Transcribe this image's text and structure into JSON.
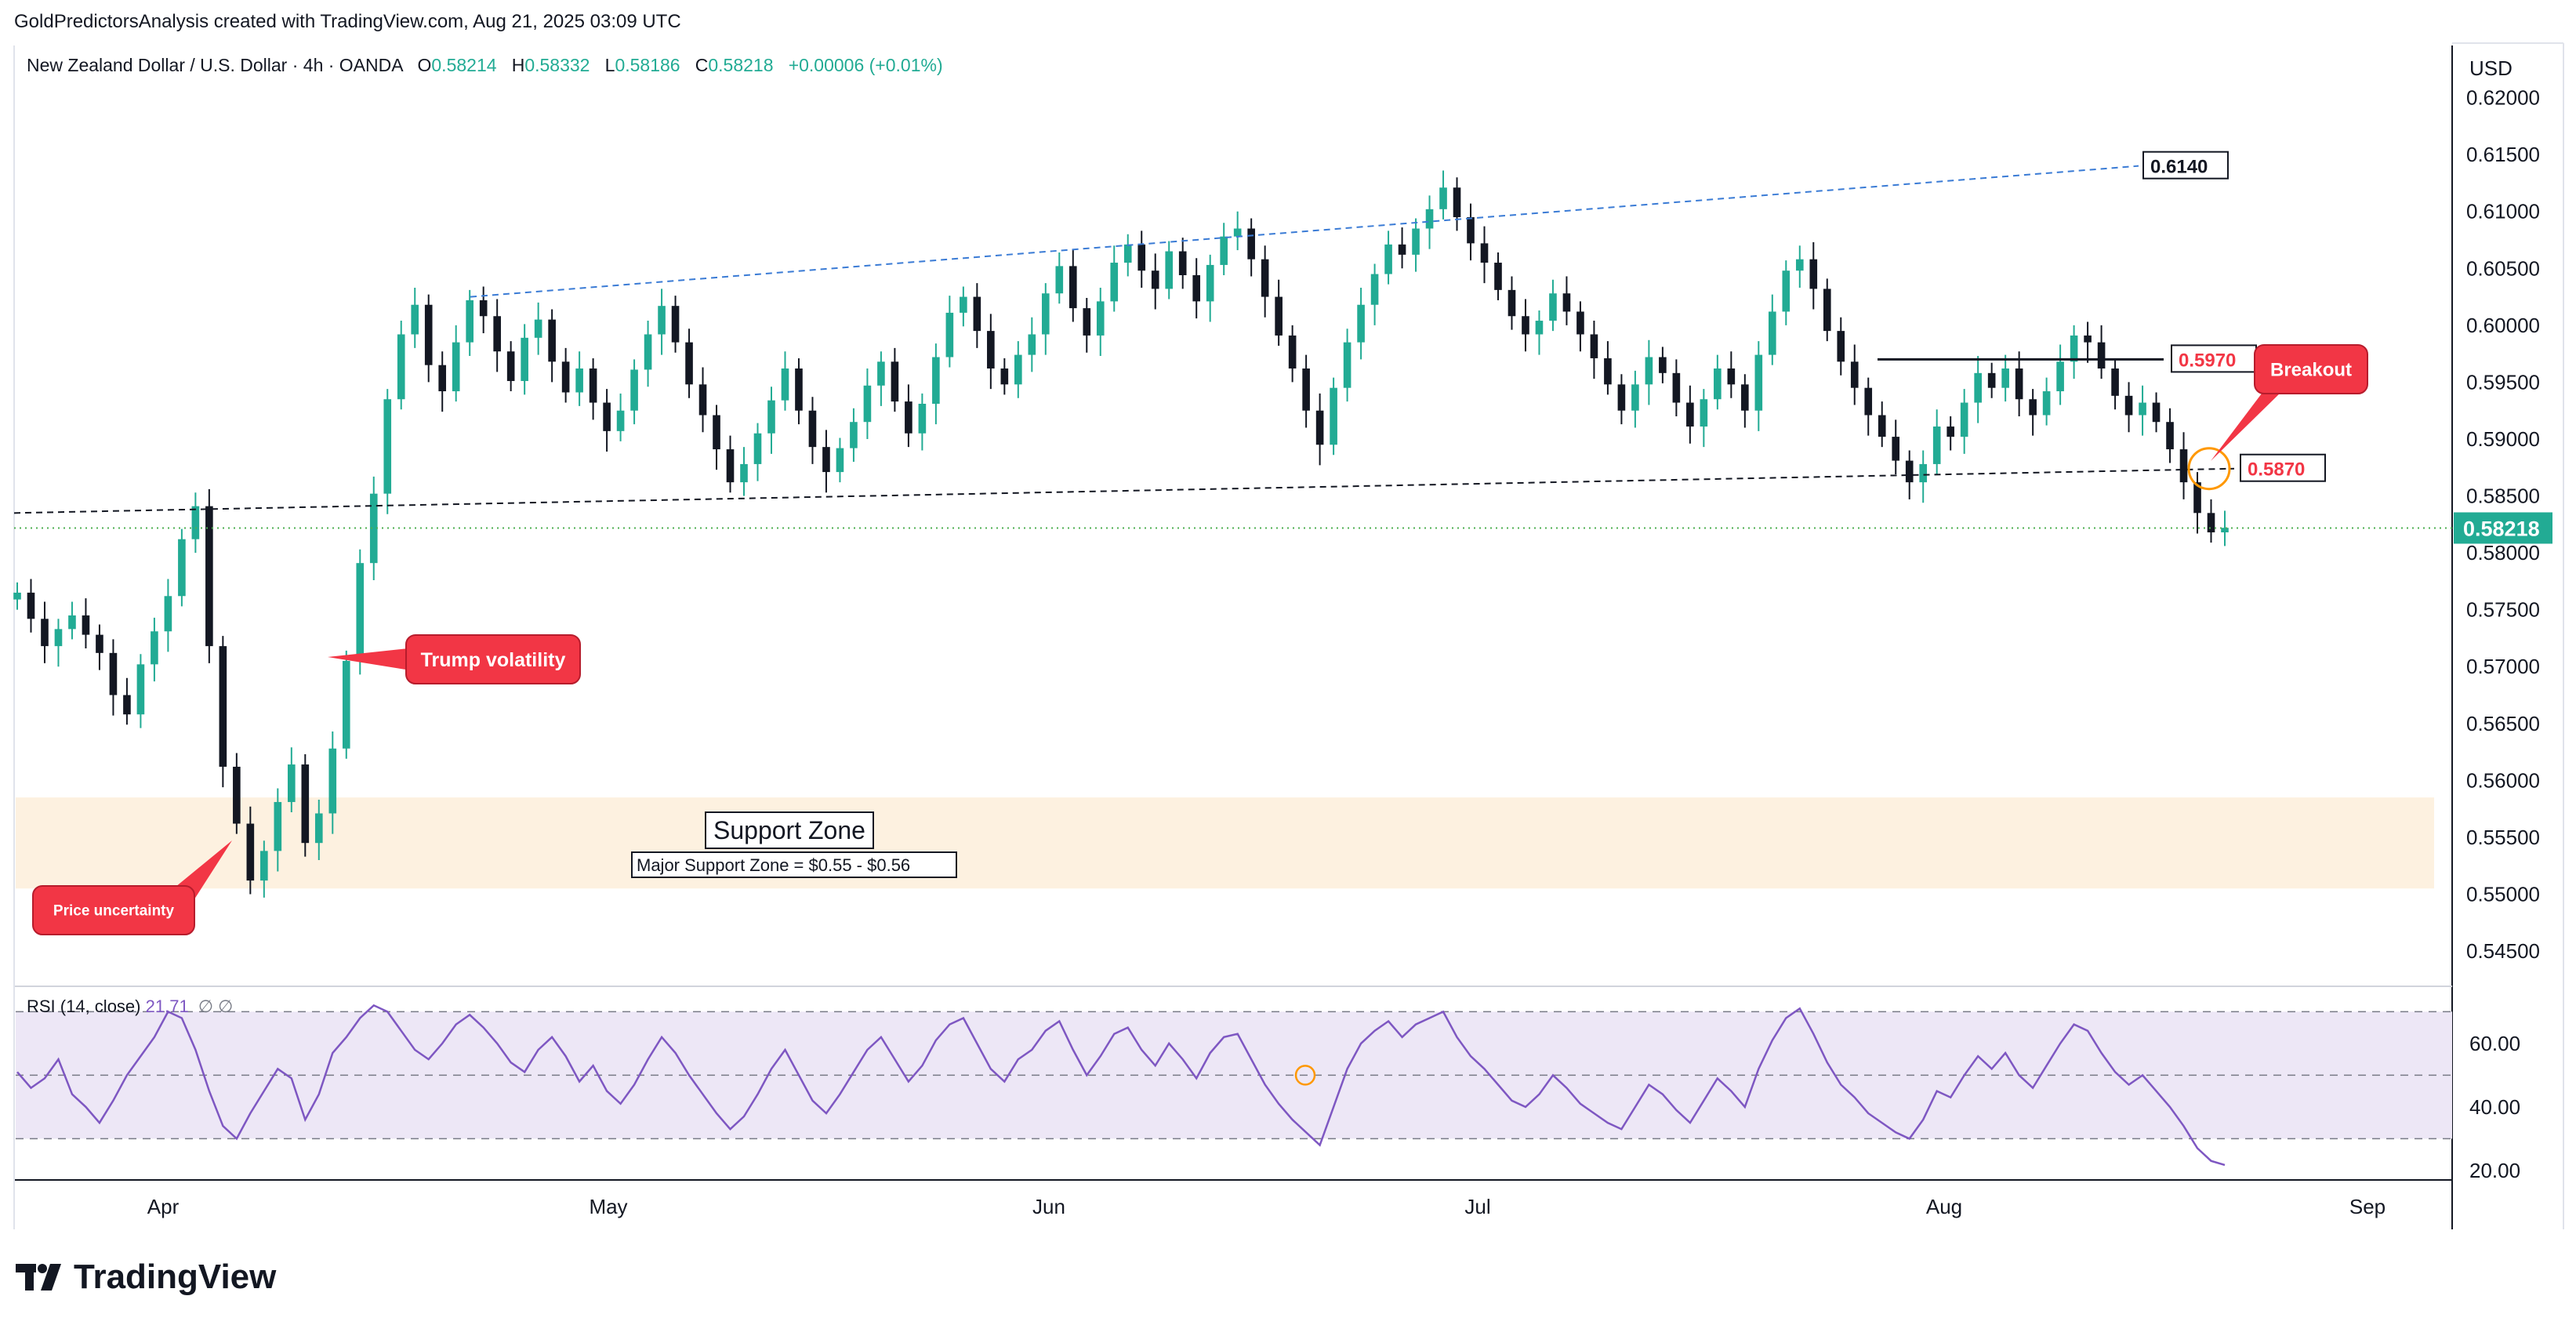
{
  "header": {
    "attribution": "GoldPredictorsAnalysis created with TradingView.com, Aug 21, 2025 03:09 UTC"
  },
  "legend": {
    "symbol": "New Zealand Dollar / U.S. Dollar · 4h · OANDA",
    "open_label": "O",
    "open": "0.58214",
    "high_label": "H",
    "high": "0.58332",
    "low_label": "L",
    "low": "0.58186",
    "close_label": "C",
    "close": "0.58218",
    "change": "+0.00006 (+0.01%)"
  },
  "rsi_legend": {
    "label": "RSI (14, close)",
    "value": "21.71",
    "icons": "∅ ∅"
  },
  "brand": {
    "name": "TradingView"
  },
  "colors": {
    "up_candle": "#22ab94",
    "down_candle": "#131722",
    "trend_blue": "#3a7bd5",
    "rsi_line": "#7e57c2",
    "rsi_band": "#ede7f6",
    "support_zone": "#fdf1e0",
    "price_label_bg": "#22ab94",
    "callout_red": "#f23645",
    "breakout_circle": "#ff9800"
  },
  "chart_data": [
    {
      "type": "line",
      "title": "",
      "currency_label": "USD",
      "x_ticks": [
        "Apr",
        "May",
        "Jun",
        "Jul",
        "Aug",
        "Sep"
      ],
      "y_ticks": [
        "0.62000",
        "0.61500",
        "0.61000",
        "0.60500",
        "0.60000",
        "0.59500",
        "0.59000",
        "0.58500",
        "0.58000",
        "0.57500",
        "0.57000",
        "0.56500",
        "0.56000",
        "0.55500",
        "0.55000",
        "0.54500"
      ],
      "ylim": [
        0.5428,
        0.6239
      ],
      "grid": false,
      "last_price": "0.58218",
      "series": [
        {
          "values": [
            0.5765,
            0.5742,
            0.5718,
            0.5733,
            0.5745,
            0.5728,
            0.5712,
            0.5675,
            0.5658,
            0.5702,
            0.5731,
            0.5762,
            0.5812,
            0.5841,
            0.5718,
            0.5612,
            0.5562,
            0.5512,
            0.5538,
            0.5581,
            0.5614,
            0.5545,
            0.5571,
            0.5628,
            0.5705,
            0.5791,
            0.5852,
            0.5935,
            0.5992,
            0.6018,
            0.5965,
            0.5942,
            0.5985,
            0.6022,
            0.6008,
            0.5977,
            0.5951,
            0.5989,
            0.6005,
            0.5968,
            0.5941,
            0.5962,
            0.5932,
            0.5907,
            0.5925,
            0.5961,
            0.5992,
            0.6017,
            0.5985,
            0.5948,
            0.5921,
            0.5891,
            0.5862,
            0.5878,
            0.5905,
            0.5934,
            0.5962,
            0.5925,
            0.5893,
            0.5871,
            0.5892,
            0.5915,
            0.5947,
            0.5968,
            0.5933,
            0.5905,
            0.5931,
            0.5972,
            0.6011,
            0.6025,
            0.5995,
            0.5962,
            0.5948,
            0.5974,
            0.5992,
            0.6028,
            0.6052,
            0.6015,
            0.5991,
            0.6021,
            0.6055,
            0.6071,
            0.6048,
            0.6032,
            0.6065,
            0.6044,
            0.6021,
            0.6053,
            0.6078,
            0.6085,
            0.6058,
            0.6025,
            0.5991,
            0.5962,
            0.5925,
            0.5895,
            0.5945,
            0.5985,
            0.6018,
            0.6045,
            0.6071,
            0.6062,
            0.6085,
            0.6102,
            0.6121,
            0.6095,
            0.6072,
            0.6055,
            0.6031,
            0.6008,
            0.5992,
            0.6004,
            0.6028,
            0.6012,
            0.5992,
            0.5971,
            0.5948,
            0.5925,
            0.5948,
            0.5972,
            0.5958,
            0.5932,
            0.5911,
            0.5935,
            0.5962,
            0.5948,
            0.5925,
            0.5974,
            0.6012,
            0.6048,
            0.6058,
            0.6032,
            0.5995,
            0.5968,
            0.5945,
            0.5921,
            0.5902,
            0.5881,
            0.5862,
            0.5878,
            0.5911,
            0.5902,
            0.5932,
            0.5958,
            0.5945,
            0.5962,
            0.5935,
            0.5921,
            0.5942,
            0.5968,
            0.5991,
            0.5985,
            0.5962,
            0.5938,
            0.5921,
            0.5932,
            0.5915,
            0.5891,
            0.5862,
            0.5835,
            0.5818,
            0.5822
          ]
        },
        {
          "name": "RSI (14, close)",
          "values": [
            51,
            46,
            49,
            55,
            44,
            40,
            35,
            42,
            50,
            56,
            62,
            70,
            68,
            58,
            45,
            34,
            30,
            38,
            45,
            52,
            49,
            36,
            44,
            57,
            62,
            68,
            72,
            70,
            64,
            58,
            55,
            60,
            66,
            69,
            65,
            60,
            54,
            51,
            58,
            62,
            56,
            48,
            53,
            45,
            41,
            47,
            55,
            62,
            57,
            50,
            44,
            38,
            33,
            37,
            44,
            52,
            58,
            50,
            42,
            38,
            44,
            51,
            58,
            62,
            55,
            48,
            53,
            61,
            66,
            68,
            60,
            52,
            48,
            55,
            58,
            64,
            67,
            58,
            50,
            56,
            63,
            65,
            58,
            53,
            60,
            55,
            49,
            57,
            62,
            63,
            55,
            47,
            41,
            36,
            32,
            28,
            40,
            52,
            60,
            64,
            67,
            62,
            66,
            68,
            70,
            62,
            56,
            52,
            47,
            42,
            40,
            44,
            50,
            46,
            41,
            38,
            35,
            33,
            40,
            47,
            44,
            39,
            35,
            42,
            49,
            45,
            40,
            52,
            61,
            68,
            71,
            63,
            54,
            47,
            43,
            38,
            35,
            32,
            30,
            36,
            45,
            43,
            50,
            56,
            52,
            57,
            50,
            46,
            53,
            60,
            66,
            64,
            57,
            51,
            47,
            50,
            45,
            40,
            34,
            27,
            23,
            21.71
          ]
        }
      ],
      "rsi": {
        "y_ticks": [
          "60.00",
          "40.00",
          "20.00"
        ],
        "levels": [
          70,
          50,
          30
        ],
        "ylim": [
          17,
          78
        ]
      },
      "annotations": {
        "upper_trendline_label": "0.6140",
        "resistance_label": "0.5970",
        "support_trendline_label": "0.5870",
        "support_zone_title": "Support Zone",
        "support_zone_detail": "Major Support Zone = $0.55 - $0.56",
        "support_zone_range": [
          0.5505,
          0.5585
        ],
        "callouts": [
          "Trump volatility",
          "Price uncertainty",
          "Breakout"
        ]
      }
    }
  ]
}
